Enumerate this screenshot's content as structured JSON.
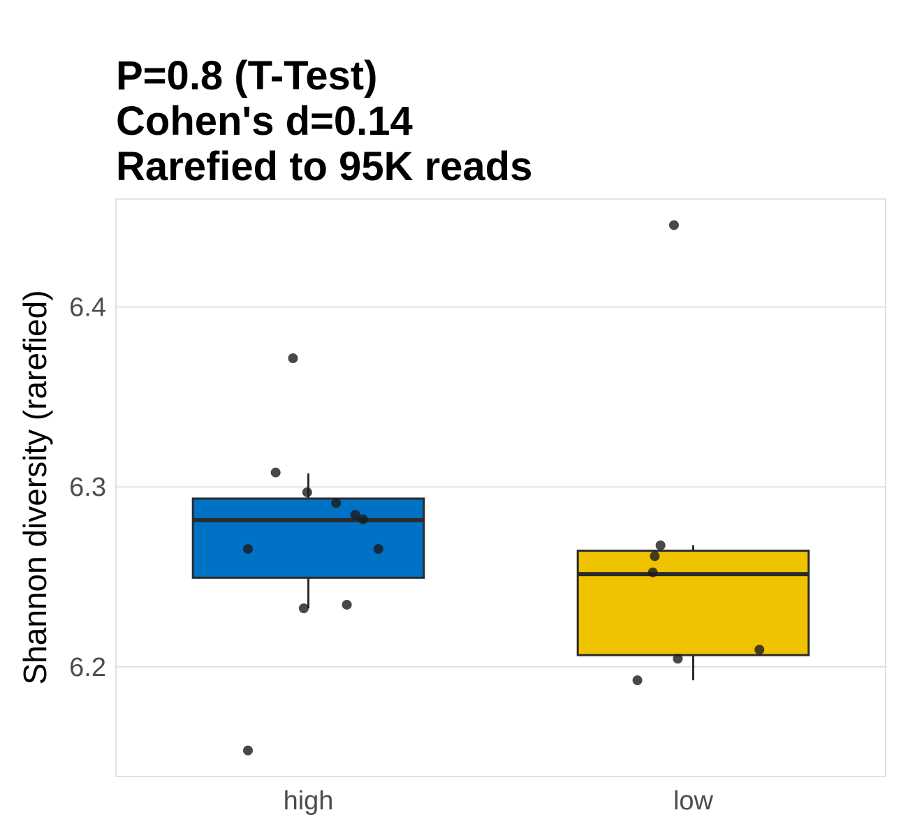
{
  "chart_data": {
    "type": "box",
    "title_lines": [
      "P=0.8 (T-Test)",
      "Cohen's d=0.14",
      "Rarefied to 95K reads"
    ],
    "xlabel": "",
    "ylabel": "Shannon diversity (rarefied)",
    "ylim": [
      6.139,
      6.46
    ],
    "yticks": [
      6.2,
      6.3,
      6.4
    ],
    "ytick_labels": [
      "6.2",
      "6.3",
      "6.4"
    ],
    "grid": true,
    "legend": "none",
    "categories": [
      "high",
      "low"
    ],
    "colors": {
      "high": "#0072c6",
      "low": "#f0c300",
      "point": "#1a1a1a",
      "line": "#2b2b2b"
    },
    "boxes": [
      {
        "category": "high",
        "q1": 6.2495,
        "median": 6.2815,
        "q3": 6.2935,
        "whisker_low": 6.2325,
        "whisker_high": 6.3075
      },
      {
        "category": "low",
        "q1": 6.2065,
        "median": 6.2515,
        "q3": 6.2645,
        "whisker_low": 6.1925,
        "whisker_high": 6.2675
      }
    ],
    "points": [
      {
        "category": "high",
        "y": 6.3715,
        "jitter": -0.04
      },
      {
        "category": "high",
        "y": 6.308,
        "jitter": -0.085
      },
      {
        "category": "high",
        "y": 6.297,
        "jitter": -0.003
      },
      {
        "category": "high",
        "y": 6.291,
        "jitter": 0.072
      },
      {
        "category": "high",
        "y": 6.2845,
        "jitter": 0.122
      },
      {
        "category": "high",
        "y": 6.282,
        "jitter": 0.142
      },
      {
        "category": "high",
        "y": 6.2655,
        "jitter": -0.157
      },
      {
        "category": "high",
        "y": 6.2655,
        "jitter": 0.182
      },
      {
        "category": "high",
        "y": 6.2345,
        "jitter": 0.1
      },
      {
        "category": "high",
        "y": 6.2325,
        "jitter": -0.012
      },
      {
        "category": "high",
        "y": 6.1535,
        "jitter": -0.157
      },
      {
        "category": "low",
        "y": 6.4455,
        "jitter": -0.05
      },
      {
        "category": "low",
        "y": 6.2675,
        "jitter": -0.085
      },
      {
        "category": "low",
        "y": 6.2615,
        "jitter": -0.1
      },
      {
        "category": "low",
        "y": 6.2525,
        "jitter": -0.105
      },
      {
        "category": "low",
        "y": 6.2095,
        "jitter": 0.172
      },
      {
        "category": "low",
        "y": 6.2045,
        "jitter": -0.04
      },
      {
        "category": "low",
        "y": 6.1925,
        "jitter": -0.145
      }
    ]
  }
}
